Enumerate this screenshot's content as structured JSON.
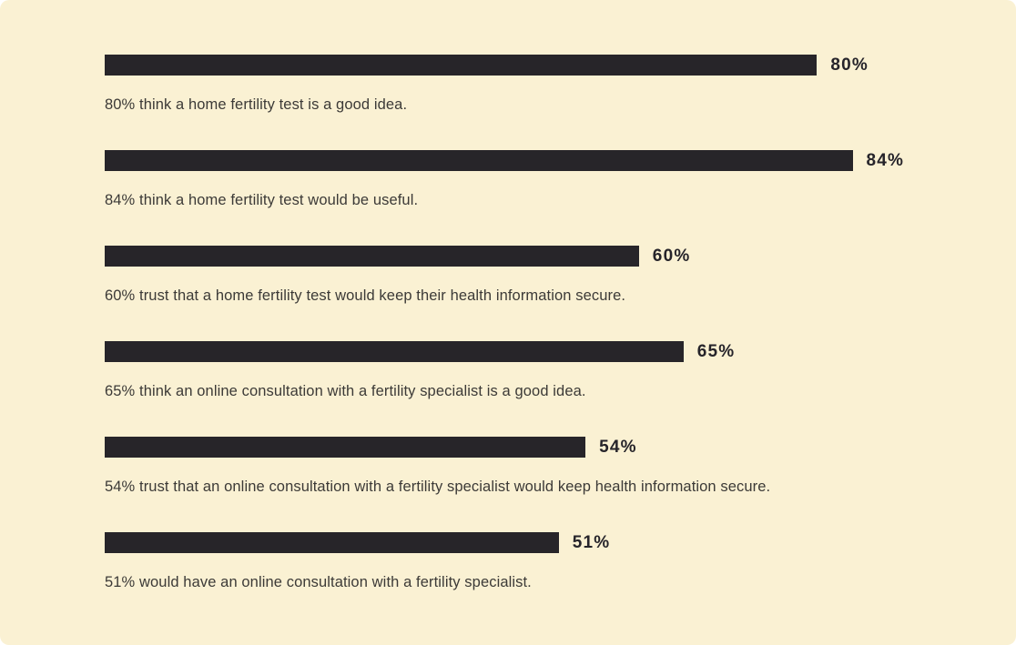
{
  "page": {
    "background_color": "#FAF1D3",
    "bar_color": "#272529",
    "label_color": "#26242A",
    "caption_color": "#3C3A37"
  },
  "chart_data": {
    "type": "bar",
    "orientation": "horizontal",
    "title": "",
    "xlabel": "",
    "ylabel": "",
    "xlim": [
      0,
      100
    ],
    "grid": false,
    "legend": false,
    "value_label_suffix": "%",
    "items": [
      {
        "value": 80,
        "label": "80%",
        "caption": "80% think a home fertility test is a good idea."
      },
      {
        "value": 84,
        "label": "84%",
        "caption": "84% think a home fertility test would be useful."
      },
      {
        "value": 60,
        "label": "60%",
        "caption": "60% trust that a home fertility test would keep their health information secure."
      },
      {
        "value": 65,
        "label": "65%",
        "caption": "65% think an online consultation with a fertility specialist is a good idea."
      },
      {
        "value": 54,
        "label": "54%",
        "caption": "54% trust that an online consultation with a fertility specialist would keep health information secure."
      },
      {
        "value": 51,
        "label": "51%",
        "caption": "51% would have an online consultation with a fertility specialist."
      }
    ]
  }
}
